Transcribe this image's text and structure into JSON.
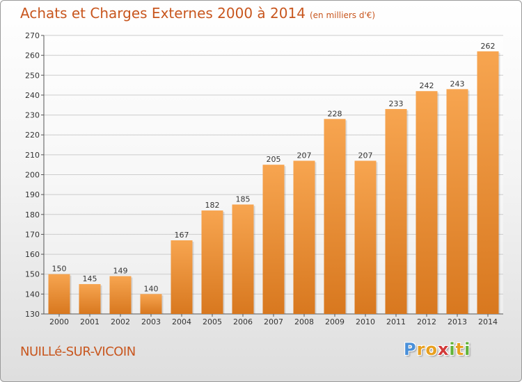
{
  "header": {
    "title": "Achats et Charges Externes 2000 à 2014",
    "subtitle": "(en milliers d'€)"
  },
  "footer": {
    "town": "NUILLé-SUR-VICOIN",
    "logo_letters": [
      {
        "ch": "P",
        "color": "#4a90d9"
      },
      {
        "ch": "r",
        "color": "#e8a020"
      },
      {
        "ch": "o",
        "color": "#e8a020"
      },
      {
        "ch": "x",
        "color": "#d23a3a"
      },
      {
        "ch": "i",
        "color": "#62b33a"
      },
      {
        "ch": "t",
        "color": "#e8a020"
      },
      {
        "ch": "i",
        "color": "#62b33a"
      }
    ]
  },
  "colors": {
    "title": "#c8561e",
    "bar_light": "#f7a550",
    "bar_dark": "#d8781f",
    "grid": "#cccccc"
  },
  "chart_data": {
    "type": "bar",
    "title": "Achats et Charges Externes 2000 à 2014",
    "subtitle": "(en milliers d'€)",
    "categories": [
      "2000",
      "2001",
      "2002",
      "2003",
      "2004",
      "2005",
      "2006",
      "2007",
      "2008",
      "2009",
      "2010",
      "2011",
      "2012",
      "2013",
      "2014"
    ],
    "values": [
      150,
      145,
      149,
      140,
      167,
      182,
      185,
      205,
      207,
      228,
      207,
      233,
      242,
      243,
      262
    ],
    "ylim": [
      130,
      270
    ],
    "yticks": [
      130,
      140,
      150,
      160,
      170,
      180,
      190,
      200,
      210,
      220,
      230,
      240,
      250,
      260,
      270
    ],
    "grid": true,
    "xlabel": "",
    "ylabel": ""
  }
}
